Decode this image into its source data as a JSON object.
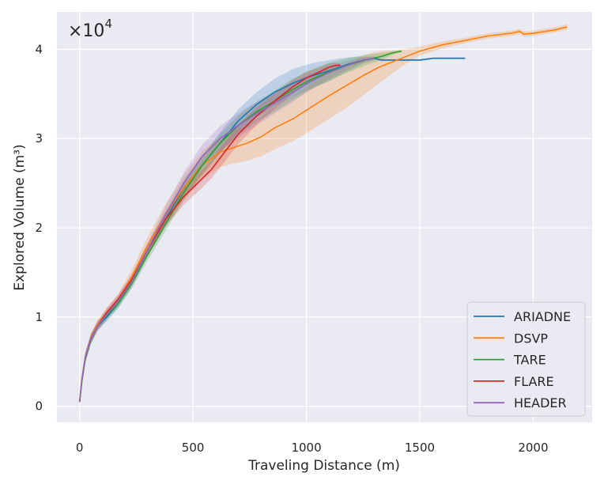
{
  "chart_data": {
    "type": "line",
    "xlabel": "Traveling Distance (m)",
    "ylabel": "Explored Volume (m³)",
    "y_offset_text": {
      "base": "×10",
      "exponent": "4"
    },
    "xlim": [
      -100,
      2260
    ],
    "ylim": [
      -0.18,
      4.42
    ],
    "x_ticks": [
      0,
      500,
      1000,
      1500,
      2000
    ],
    "y_ticks": [
      0,
      1,
      2,
      3,
      4
    ],
    "grid": true,
    "legend_position": "lower-right",
    "series": [
      {
        "name": "ARIADNE",
        "color": "#1f77b4",
        "x": [
          0,
          10,
          25,
          50,
          80,
          120,
          170,
          230,
          300,
          380,
          460,
          540,
          620,
          700,
          780,
          860,
          940,
          1020,
          1100,
          1180,
          1250,
          1300,
          1330,
          1400,
          1500,
          1560,
          1600,
          1700
        ],
        "y": [
          0.05,
          0.3,
          0.55,
          0.75,
          0.9,
          1.0,
          1.15,
          1.4,
          1.75,
          2.1,
          2.45,
          2.7,
          2.95,
          3.2,
          3.38,
          3.52,
          3.62,
          3.7,
          3.76,
          3.83,
          3.88,
          3.9,
          3.88,
          3.88,
          3.88,
          3.9,
          3.9,
          3.9
        ],
        "band_halfwidth": [
          0.02,
          0.04,
          0.05,
          0.05,
          0.05,
          0.05,
          0.05,
          0.06,
          0.07,
          0.09,
          0.1,
          0.11,
          0.12,
          0.13,
          0.14,
          0.15,
          0.16,
          0.14,
          0.12,
          0.08,
          0.04,
          0.02,
          0.01,
          0.01,
          0.01,
          0.01,
          0.01,
          0.01
        ]
      },
      {
        "name": "DSVP",
        "color": "#ff7f0e",
        "x": [
          0,
          10,
          25,
          50,
          80,
          120,
          170,
          230,
          300,
          380,
          460,
          540,
          620,
          680,
          740,
          800,
          860,
          940,
          1020,
          1100,
          1180,
          1260,
          1320,
          1380,
          1440,
          1500,
          1600,
          1700,
          1800,
          1900,
          1940,
          1960,
          2000,
          2050,
          2100,
          2130,
          2150
        ],
        "y": [
          0.05,
          0.3,
          0.55,
          0.77,
          0.92,
          1.05,
          1.2,
          1.45,
          1.8,
          2.15,
          2.45,
          2.7,
          2.85,
          2.9,
          2.95,
          3.02,
          3.12,
          3.22,
          3.35,
          3.48,
          3.6,
          3.72,
          3.8,
          3.86,
          3.92,
          3.98,
          4.05,
          4.1,
          4.15,
          4.18,
          4.2,
          4.17,
          4.18,
          4.2,
          4.22,
          4.24,
          4.25
        ],
        "band_halfwidth": [
          0.02,
          0.04,
          0.05,
          0.05,
          0.05,
          0.06,
          0.06,
          0.08,
          0.1,
          0.12,
          0.14,
          0.16,
          0.17,
          0.18,
          0.2,
          0.22,
          0.24,
          0.25,
          0.26,
          0.26,
          0.25,
          0.22,
          0.18,
          0.13,
          0.08,
          0.05,
          0.04,
          0.03,
          0.03,
          0.03,
          0.03,
          0.03,
          0.03,
          0.03,
          0.03,
          0.03,
          0.03
        ]
      },
      {
        "name": "TARE",
        "color": "#2ca02c",
        "x": [
          0,
          10,
          25,
          50,
          80,
          120,
          170,
          230,
          300,
          380,
          460,
          540,
          620,
          700,
          780,
          860,
          940,
          1020,
          1100,
          1180,
          1260,
          1330,
          1380,
          1420
        ],
        "y": [
          0.05,
          0.28,
          0.53,
          0.75,
          0.9,
          1.02,
          1.15,
          1.38,
          1.7,
          2.05,
          2.4,
          2.7,
          2.95,
          3.15,
          3.3,
          3.42,
          3.55,
          3.66,
          3.75,
          3.82,
          3.88,
          3.92,
          3.96,
          3.98
        ],
        "band_halfwidth": [
          0.02,
          0.04,
          0.05,
          0.05,
          0.05,
          0.05,
          0.05,
          0.06,
          0.07,
          0.08,
          0.09,
          0.1,
          0.1,
          0.11,
          0.11,
          0.12,
          0.12,
          0.11,
          0.1,
          0.08,
          0.06,
          0.04,
          0.02,
          0.01
        ]
      },
      {
        "name": "FLARE",
        "color": "#d62728",
        "x": [
          0,
          10,
          25,
          50,
          80,
          120,
          170,
          230,
          300,
          380,
          460,
          520,
          580,
          640,
          700,
          780,
          860,
          940,
          1000,
          1060,
          1100,
          1130,
          1150
        ],
        "y": [
          0.05,
          0.3,
          0.55,
          0.76,
          0.9,
          1.05,
          1.2,
          1.42,
          1.75,
          2.1,
          2.35,
          2.5,
          2.65,
          2.85,
          3.05,
          3.25,
          3.42,
          3.58,
          3.68,
          3.75,
          3.8,
          3.82,
          3.82
        ],
        "band_halfwidth": [
          0.02,
          0.04,
          0.05,
          0.05,
          0.05,
          0.05,
          0.05,
          0.06,
          0.07,
          0.08,
          0.09,
          0.1,
          0.1,
          0.11,
          0.11,
          0.1,
          0.09,
          0.08,
          0.07,
          0.05,
          0.04,
          0.03,
          0.02
        ]
      },
      {
        "name": "HEADER",
        "color": "#9467bd",
        "x": [
          0,
          10,
          25,
          50,
          80,
          120,
          170,
          230,
          300,
          380,
          460,
          540,
          620,
          700,
          780,
          860,
          940,
          1020,
          1100,
          1180,
          1250,
          1300
        ],
        "y": [
          0.05,
          0.3,
          0.55,
          0.76,
          0.9,
          1.03,
          1.18,
          1.4,
          1.75,
          2.15,
          2.5,
          2.8,
          3.0,
          3.15,
          3.28,
          3.4,
          3.52,
          3.64,
          3.74,
          3.82,
          3.88,
          3.9
        ],
        "band_halfwidth": [
          0.02,
          0.04,
          0.05,
          0.05,
          0.05,
          0.05,
          0.06,
          0.07,
          0.08,
          0.1,
          0.12,
          0.13,
          0.14,
          0.14,
          0.13,
          0.12,
          0.11,
          0.09,
          0.07,
          0.05,
          0.03,
          0.02
        ]
      }
    ]
  }
}
